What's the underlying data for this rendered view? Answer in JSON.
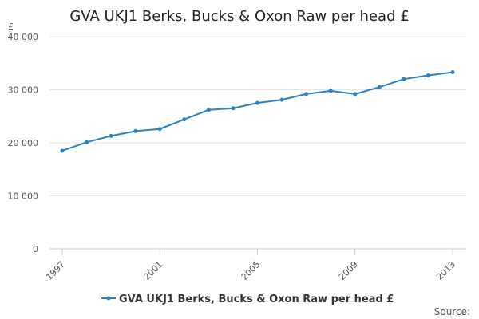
{
  "colors": {
    "series": "#2b82c0",
    "grid": "#e6e6e6",
    "text": "#333333"
  },
  "source_label": "Source:",
  "chart_data": {
    "type": "line",
    "title": "GVA UKJ1 Berks, Bucks & Oxon Raw per head £",
    "ylabel": "£",
    "xlabel": "",
    "ylim": [
      0,
      40000
    ],
    "yticks": [
      0,
      10000,
      20000,
      30000,
      40000
    ],
    "ytick_labels": [
      "0",
      "10 000",
      "20 000",
      "30 000",
      "40 000"
    ],
    "xlim": [
      1997,
      2013
    ],
    "xticks": [
      1997,
      2001,
      2005,
      2009,
      2013
    ],
    "xtick_labels": [
      "1997",
      "2001",
      "2005",
      "2009",
      "2013"
    ],
    "grid": true,
    "legend_position": "bottom",
    "x": [
      1997,
      1998,
      1999,
      2000,
      2001,
      2002,
      2003,
      2004,
      2005,
      2006,
      2007,
      2008,
      2009,
      2010,
      2011,
      2012,
      2013
    ],
    "series": [
      {
        "name": "GVA UKJ1 Berks, Bucks & Oxon Raw per head £",
        "values": [
          18500,
          20100,
          21300,
          22200,
          22600,
          24400,
          26200,
          26500,
          27500,
          28100,
          29200,
          29800,
          29200,
          30500,
          32000,
          32700,
          33300
        ]
      }
    ]
  }
}
